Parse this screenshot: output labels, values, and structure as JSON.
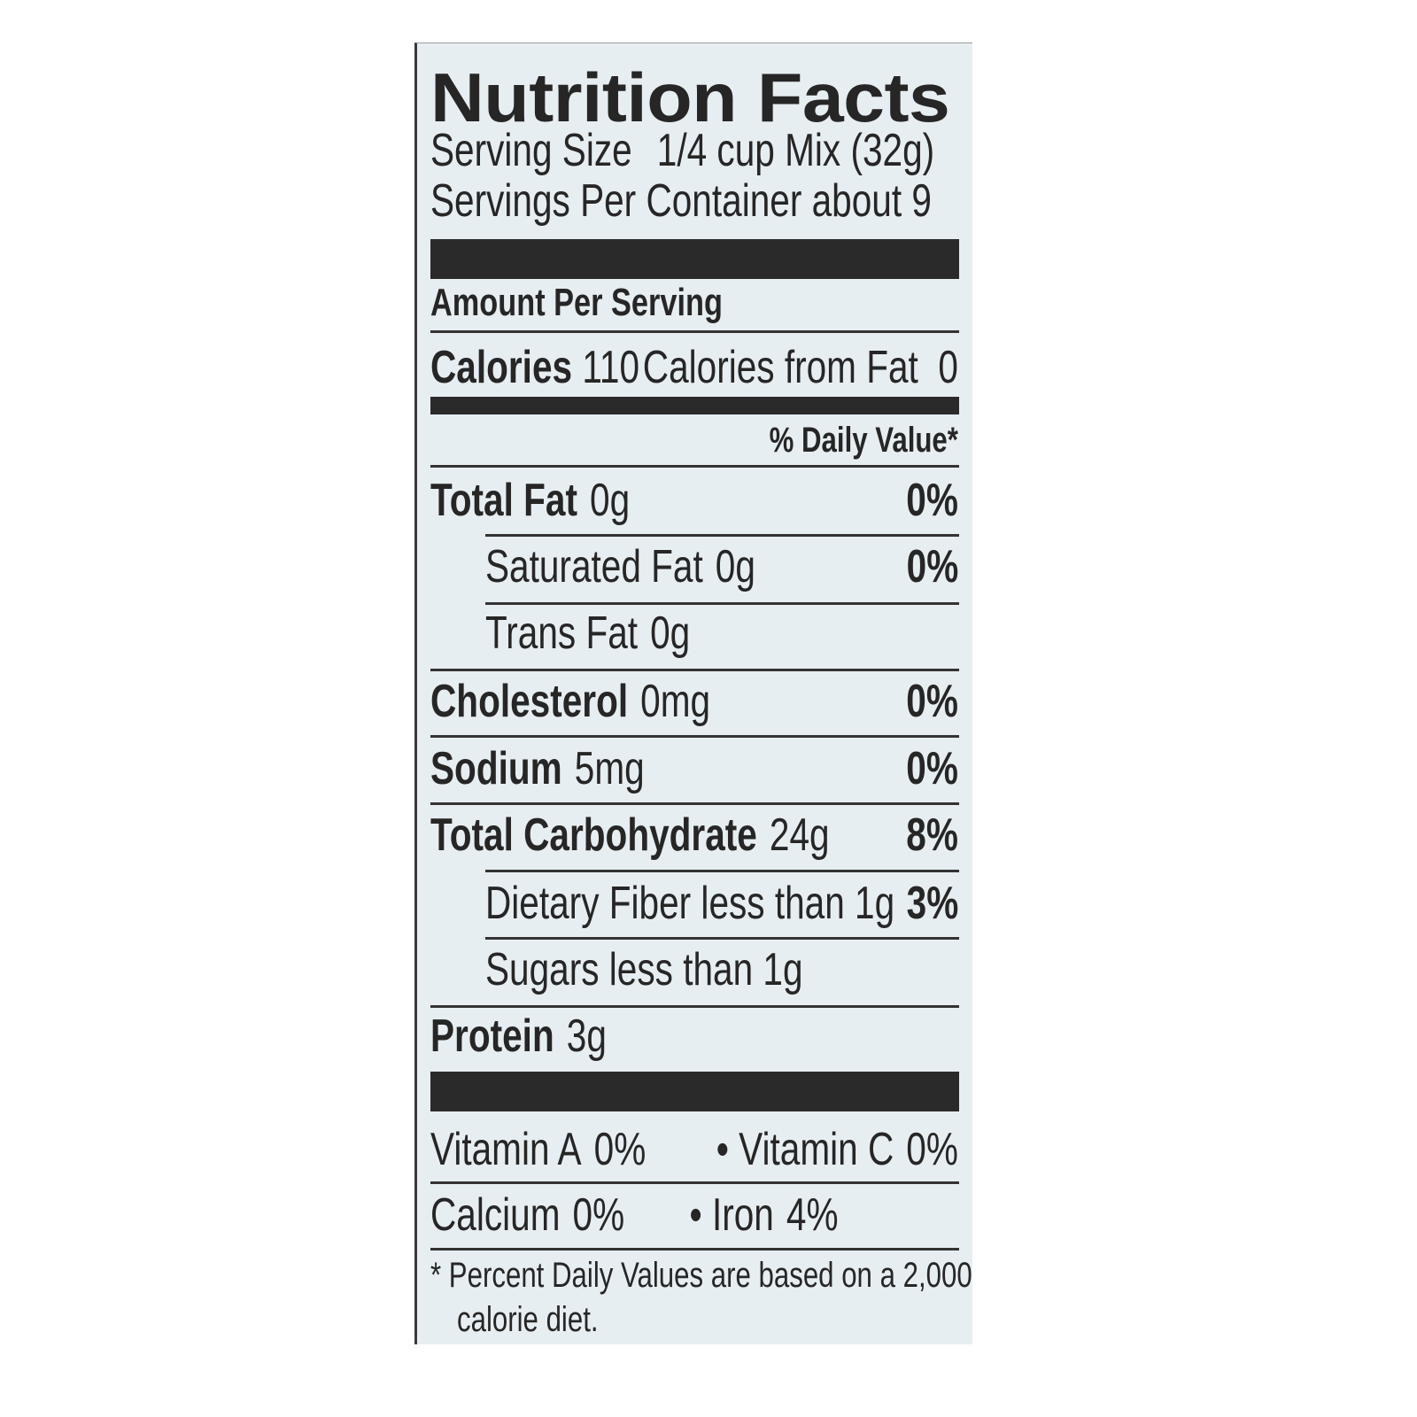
{
  "label": {
    "title": "Nutrition Facts",
    "serving_size_label": "Serving Size",
    "serving_size_value": "1/4 cup Mix (32g)",
    "servings_per_container": "Servings Per Container about 9",
    "amount_per_serving": "Amount Per Serving",
    "calories_label": "Calories",
    "calories_value": "110",
    "calories_from_fat": "Calories from Fat  0",
    "daily_value_header": "% Daily Value*",
    "nutrients": [
      {
        "name": "Total Fat",
        "amount": "0g",
        "dv": "0%"
      },
      {
        "name": "Saturated Fat",
        "amount": "0g",
        "dv": "0%"
      },
      {
        "name": "Trans Fat",
        "amount": "0g",
        "dv": ""
      },
      {
        "name": "Cholesterol",
        "amount": "0mg",
        "dv": "0%"
      },
      {
        "name": "Sodium",
        "amount": "5mg",
        "dv": "0%"
      },
      {
        "name": "Total Carbohydrate",
        "amount": "24g",
        "dv": "8%"
      },
      {
        "name": "Dietary Fiber",
        "amount": "less than 1g",
        "dv": "3%"
      },
      {
        "name": "Sugars",
        "amount": "less than 1g",
        "dv": ""
      },
      {
        "name": "Protein",
        "amount": "3g",
        "dv": ""
      }
    ],
    "vitamins": [
      {
        "name": "Vitamin A",
        "dv": "0%"
      },
      {
        "name": "• Vitamin C",
        "dv": "0%"
      },
      {
        "name": "Calcium",
        "dv": "0%"
      },
      {
        "name": "• Iron",
        "dv": "4%"
      }
    ],
    "footnote_line1": "* Percent Daily Values are based on a 2,000",
    "footnote_line2": "calorie diet."
  }
}
